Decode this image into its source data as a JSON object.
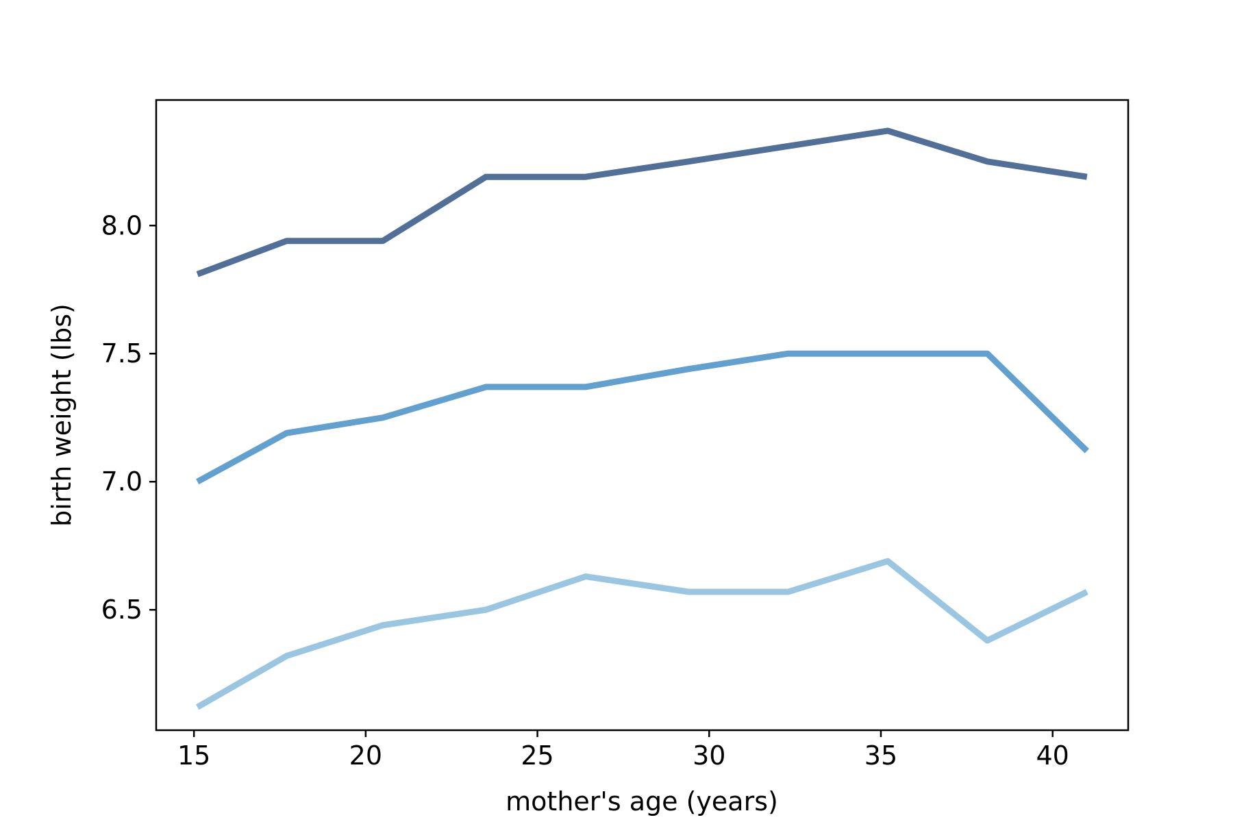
{
  "chart_data": {
    "type": "line",
    "title": "",
    "xlabel": "mother's age (years)",
    "ylabel": "birth weight (lbs)",
    "xlim": [
      13.9,
      42.2
    ],
    "ylim": [
      6.03,
      8.49
    ],
    "xticks": [
      15,
      20,
      25,
      30,
      35,
      40
    ],
    "yticks": [
      6.5,
      7.0,
      7.5,
      8.0
    ],
    "xtick_labels": [
      "15",
      "20",
      "25",
      "30",
      "35",
      "40"
    ],
    "ytick_labels": [
      "6.5",
      "7.0",
      "7.5",
      "8.0"
    ],
    "grid": false,
    "legend": null,
    "x": [
      15.1,
      17.7,
      20.5,
      23.5,
      26.4,
      29.4,
      32.3,
      35.2,
      38.1,
      41.0
    ],
    "series": [
      {
        "color": "#9ac6e2",
        "values": [
          6.12,
          6.32,
          6.44,
          6.5,
          6.63,
          6.57,
          6.57,
          6.69,
          6.38,
          6.57
        ]
      },
      {
        "color": "#62a0cf",
        "values": [
          7.0,
          7.19,
          7.25,
          7.37,
          7.37,
          7.44,
          7.5,
          7.5,
          7.5,
          7.12
        ]
      },
      {
        "color": "#526f98",
        "values": [
          7.81,
          7.94,
          7.94,
          8.19,
          8.19,
          8.25,
          8.31,
          8.37,
          8.25,
          8.19
        ]
      }
    ]
  }
}
